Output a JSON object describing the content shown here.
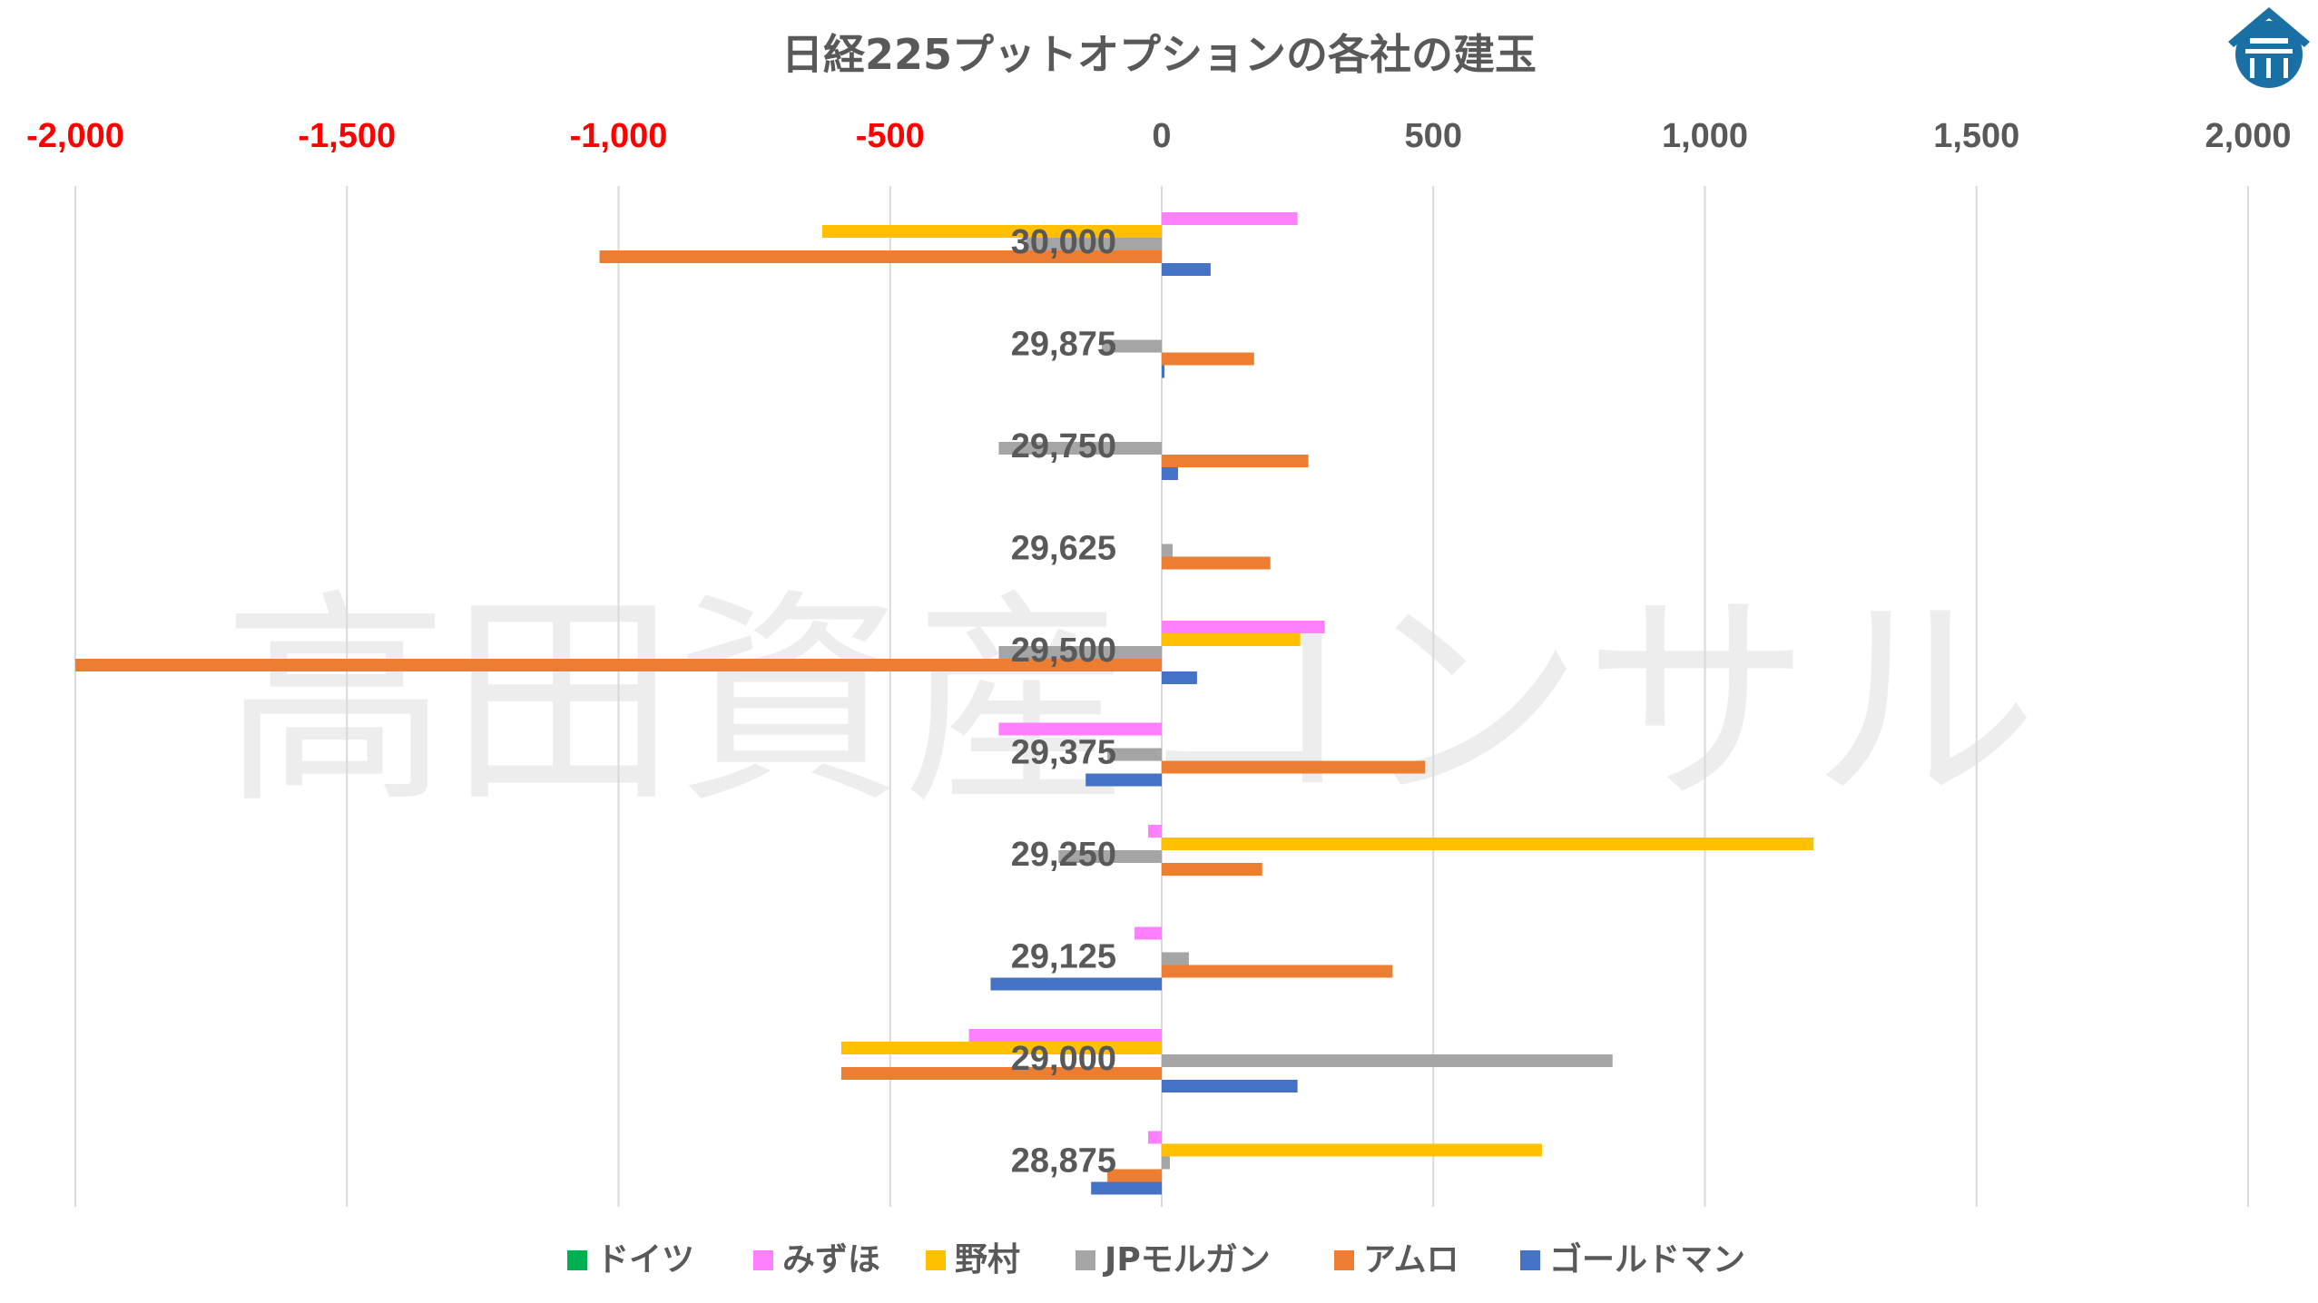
{
  "chart_data": {
    "type": "bar",
    "orientation": "horizontal",
    "title": "日経225プットオプションの各社の建玉",
    "watermark": "高田資産コンサル",
    "categories": [
      "30,000",
      "29,875",
      "29,750",
      "29,625",
      "29,500",
      "29,375",
      "29,250",
      "29,125",
      "29,000",
      "28,875"
    ],
    "x_ticks": [
      "-2,000",
      "-1,500",
      "-1,000",
      "-500",
      "0",
      "500",
      "1,000",
      "1,500",
      "2,000"
    ],
    "xlim": [
      -2000,
      2000
    ],
    "negative_tick_color": "#ff0000",
    "positive_tick_color": "#595959",
    "grid": true,
    "legend_position": "bottom",
    "series": [
      {
        "name": "ドイツ",
        "color": "#00b050",
        "values": [
          0,
          0,
          0,
          0,
          0,
          0,
          0,
          0,
          0,
          0
        ]
      },
      {
        "name": "みずほ",
        "color": "#ff80ff",
        "values": [
          250,
          0,
          0,
          0,
          300,
          -300,
          -25,
          -50,
          -355,
          -25
        ]
      },
      {
        "name": "野村",
        "color": "#ffc000",
        "values": [
          -625,
          0,
          0,
          0,
          255,
          0,
          1200,
          0,
          -590,
          700
        ]
      },
      {
        "name": "JPモルガン",
        "color": "#a5a5a5",
        "values": [
          -250,
          -110,
          -300,
          20,
          -300,
          -100,
          -190,
          50,
          830,
          15
        ]
      },
      {
        "name": "アムロ",
        "color": "#ed7d31",
        "values": [
          -1035,
          170,
          270,
          200,
          -2000,
          485,
          185,
          425,
          -590,
          -100
        ]
      },
      {
        "name": "ゴールドマン",
        "color": "#4472c4",
        "values": [
          90,
          5,
          30,
          0,
          65,
          -140,
          0,
          -315,
          250,
          -130
        ]
      }
    ]
  },
  "logo": {
    "name": "takata-logo",
    "color": "#1a6fa5"
  }
}
